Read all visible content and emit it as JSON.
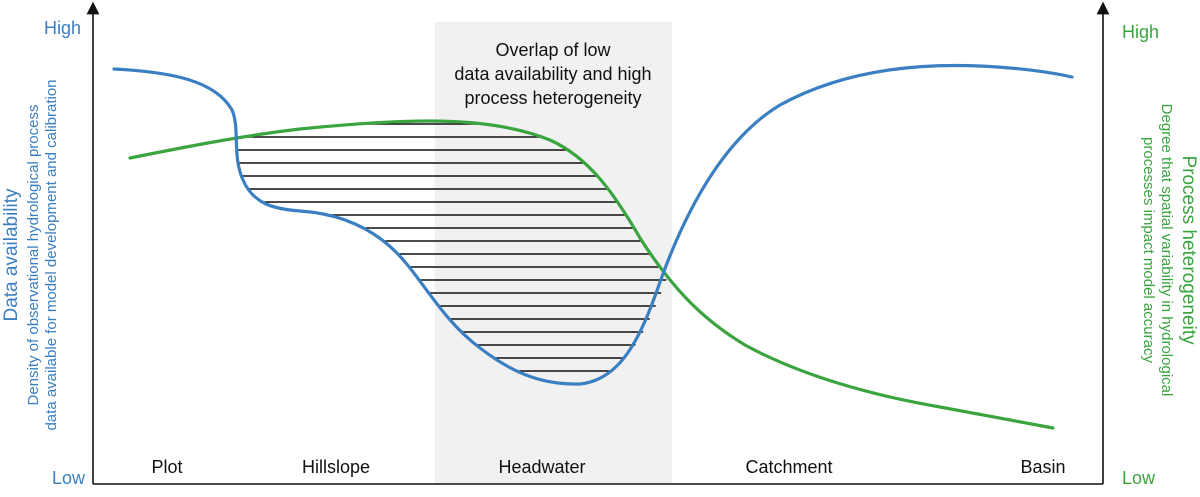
{
  "colors": {
    "data_availability": "#3a7fc1",
    "process_heterogeneity": "#3aa43f",
    "overlap_band": "#f1f1f1",
    "hatch": "#111111",
    "axis": "#111111"
  },
  "left_axis": {
    "high_label": "High",
    "low_label": "Low",
    "title": "Data availability",
    "subtitle_line1": "Density of observational hydrological process",
    "subtitle_line2": "data available for model development and calibration"
  },
  "right_axis": {
    "high_label": "High",
    "low_label": "Low",
    "title": "Process heterogeneity",
    "subtitle_line1": "Degree that spatial variability in hydrological",
    "subtitle_line2": "processes impact model accuracy"
  },
  "overlap": {
    "line1": "Overlap of low",
    "line2": "data availability and high",
    "line3": "process heterogeneity"
  },
  "scales": [
    "Plot",
    "Hillslope",
    "Headwater",
    "Catchment",
    "Basin"
  ],
  "curves": {
    "data_availability": "Data availability",
    "process_heterogeneity": "Process heterogeneity"
  }
}
